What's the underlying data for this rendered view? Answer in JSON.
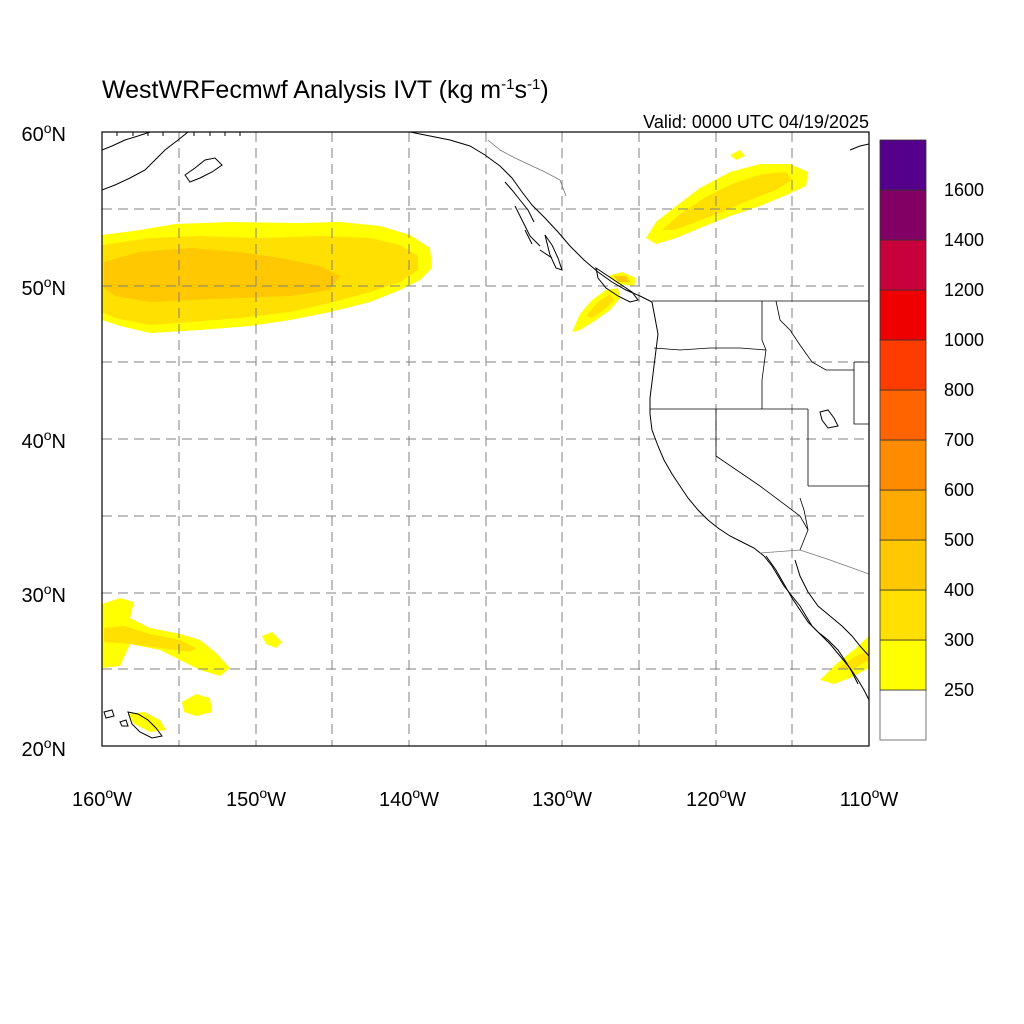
{
  "title": {
    "prefix": "WestWRFecmwf Analysis IVT (kg m",
    "sup1": "-1",
    "mid": "s",
    "sup2": "-1",
    "suffix": ")"
  },
  "valid": "Valid: 0000 UTC 04/19/2025",
  "axes": {
    "lon_labels": [
      {
        "deg": "160",
        "hem": "W"
      },
      {
        "deg": "150",
        "hem": "W"
      },
      {
        "deg": "140",
        "hem": "W"
      },
      {
        "deg": "130",
        "hem": "W"
      },
      {
        "deg": "120",
        "hem": "W"
      },
      {
        "deg": "110",
        "hem": "W"
      }
    ],
    "lat_labels": [
      {
        "deg": "60",
        "hem": "N"
      },
      {
        "deg": "50",
        "hem": "N"
      },
      {
        "deg": "40",
        "hem": "N"
      },
      {
        "deg": "30",
        "hem": "N"
      },
      {
        "deg": "20",
        "hem": "N"
      }
    ],
    "lon_range": [
      -160,
      -110
    ],
    "lat_range": [
      20,
      60
    ],
    "grid_interval_deg": 5
  },
  "colorbar": {
    "colors": [
      "#ffff00",
      "#ffe000",
      "#ffc800",
      "#ffaa00",
      "#ff8c00",
      "#ff6400",
      "#ff3c00",
      "#ee0000",
      "#c8003c",
      "#820064",
      "#55008c"
    ],
    "labels": [
      "250",
      "300",
      "400",
      "500",
      "600",
      "700",
      "800",
      "1000",
      "1200",
      "1400",
      "1600"
    ]
  },
  "ivt_colors": {
    "c250": "#ffff00",
    "c300": "#ffe000",
    "c400": "#ffc800"
  }
}
